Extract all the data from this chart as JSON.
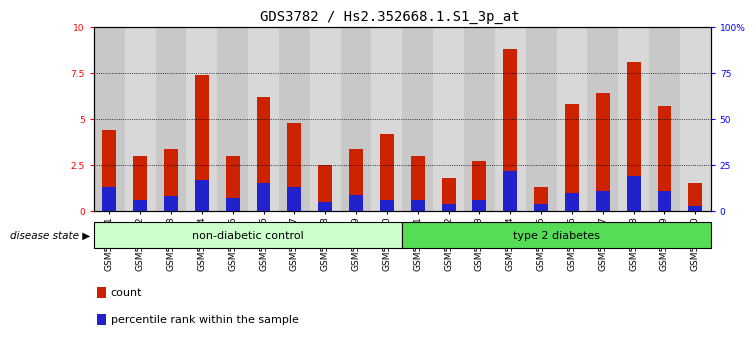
{
  "title": "GDS3782 / Hs2.352668.1.S1_3p_at",
  "samples": [
    "GSM524151",
    "GSM524152",
    "GSM524153",
    "GSM524154",
    "GSM524155",
    "GSM524156",
    "GSM524157",
    "GSM524158",
    "GSM524159",
    "GSM524160",
    "GSM524161",
    "GSM524162",
    "GSM524163",
    "GSM524164",
    "GSM524165",
    "GSM524166",
    "GSM524167",
    "GSM524168",
    "GSM524169",
    "GSM524170"
  ],
  "count_values": [
    4.4,
    3.0,
    3.4,
    7.4,
    3.0,
    6.2,
    4.8,
    2.5,
    3.4,
    4.2,
    3.0,
    1.8,
    2.7,
    8.8,
    1.3,
    5.8,
    6.4,
    8.1,
    5.7,
    1.5
  ],
  "percentile_values": [
    1.3,
    0.6,
    0.8,
    1.7,
    0.7,
    1.5,
    1.3,
    0.5,
    0.9,
    0.6,
    0.6,
    0.4,
    0.6,
    2.2,
    0.4,
    1.0,
    1.1,
    1.9,
    1.1,
    0.3
  ],
  "bar_color": "#cc2200",
  "percentile_color": "#2222cc",
  "bar_width": 0.45,
  "ylim": [
    0,
    10
  ],
  "y2lim": [
    0,
    100
  ],
  "yticks": [
    0,
    2.5,
    5.0,
    7.5,
    10
  ],
  "y2ticks": [
    0,
    25,
    50,
    75,
    100
  ],
  "ytick_labels": [
    "0",
    "2.5",
    "5",
    "7.5",
    "10"
  ],
  "y2tick_labels": [
    "0",
    "25",
    "50",
    "75",
    "100%"
  ],
  "grid_lines": [
    2.5,
    5.0,
    7.5
  ],
  "group1_label": "non-diabetic control",
  "group2_label": "type 2 diabetes",
  "group1_count": 10,
  "group2_count": 10,
  "disease_state_label": "disease state",
  "legend_count_label": "count",
  "legend_percentile_label": "percentile rank within the sample",
  "col_bg_odd": "#c8c8c8",
  "col_bg_even": "#d8d8d8",
  "group1_color": "#ccffcc",
  "group2_color": "#55dd55",
  "plot_bg": "#ffffff",
  "title_fontsize": 10,
  "tick_fontsize": 6.5,
  "group_fontsize": 8,
  "legend_fontsize": 8
}
